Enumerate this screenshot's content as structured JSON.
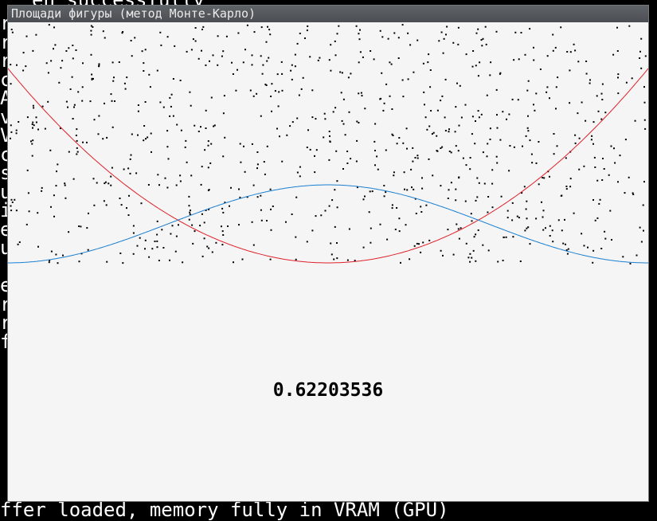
{
  "window": {
    "title": "Площади фигуры (метод Монте-Карло)"
  },
  "result": {
    "value": "0.62203536"
  },
  "terminal": {
    "left_column_chars": [
      "r",
      "r",
      "r",
      "c",
      "A",
      "v",
      "V",
      "c",
      "s",
      "u",
      "i",
      "e",
      "u",
      "",
      "e",
      "r",
      "r",
      "f"
    ],
    "top_fragment": "en successfully",
    "bottom_fragment": "ffer loaded, memory fully in VRAM (GPU)"
  },
  "plot": {
    "curve_red_color": "#e0202a",
    "curve_blue_color": "#1a7fd0",
    "point_color": "#000000",
    "background_color": "#f5f5f5",
    "point_count": 900,
    "seed": 7
  }
}
